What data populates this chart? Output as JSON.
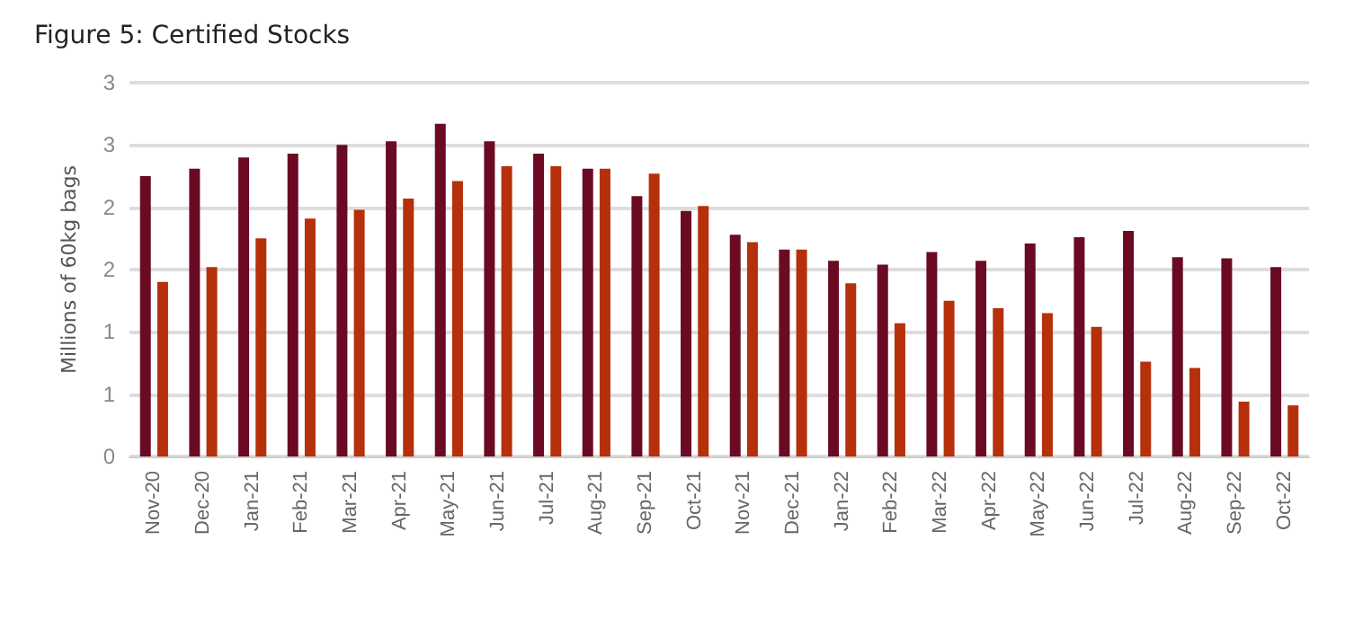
{
  "chart_data": {
    "type": "bar",
    "title": "Figure 5: Certified Stocks",
    "ylabel": "Millions of 60kg bags",
    "categories": [
      "Nov-20",
      "Dec-20",
      "Jan-21",
      "Feb-21",
      "Mar-21",
      "Apr-21",
      "May-21",
      "Jun-21",
      "Jul-21",
      "Aug-21",
      "Sep-21",
      "Oct-21",
      "Nov-21",
      "Dec-21",
      "Jan-22",
      "Feb-22",
      "Mar-22",
      "Apr-22",
      "May-22",
      "Jun-22",
      "Jul-22",
      "Aug-22",
      "Sep-22",
      "Oct-22"
    ],
    "series": [
      {
        "color": "#6b0a23",
        "values": [
          2.25,
          2.31,
          2.4,
          2.43,
          2.5,
          2.53,
          2.67,
          2.53,
          2.43,
          2.31,
          2.09,
          1.97,
          1.78,
          1.66,
          1.57,
          1.54,
          1.64,
          1.57,
          1.71,
          1.76,
          1.81,
          1.6,
          1.59,
          1.52
        ]
      },
      {
        "color": "#b5300b",
        "values": [
          1.4,
          1.52,
          1.75,
          1.91,
          1.98,
          2.07,
          2.21,
          2.33,
          2.33,
          2.31,
          2.27,
          2.01,
          1.72,
          1.66,
          1.39,
          1.07,
          1.25,
          1.19,
          1.15,
          1.04,
          0.76,
          0.71,
          0.44,
          0.41
        ]
      }
    ],
    "ylim": [
      0,
      3
    ],
    "yticks": [
      0,
      {
        "value": 0.5,
        "label": "1"
      },
      1,
      {
        "value": 1.5,
        "label": "2"
      },
      2,
      {
        "value": 2.5,
        "label": "3"
      },
      3
    ],
    "grid": "y"
  }
}
